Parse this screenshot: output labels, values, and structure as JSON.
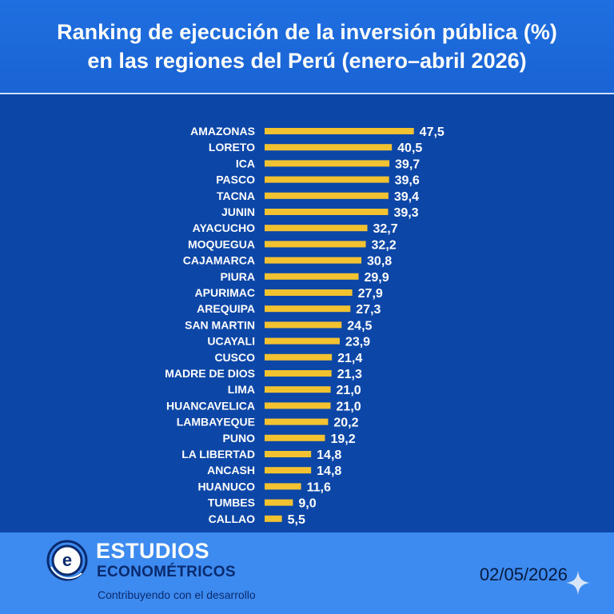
{
  "header": {
    "title_line1": "Ranking de ejecución de la inversión pública (%)",
    "title_line2": "en las regiones del Perú (enero–abril 2026)"
  },
  "chart_data": {
    "type": "bar",
    "orientation": "horizontal",
    "categories": [
      "AMAZONAS",
      "LORETO",
      "ICA",
      "PASCO",
      "TACNA",
      "JUNIN",
      "AYACUCHO",
      "MOQUEGUA",
      "CAJAMARCA",
      "PIURA",
      "APURIMAC",
      "AREQUIPA",
      "SAN MARTIN",
      "UCAYALI",
      "CUSCO",
      "MADRE DE DIOS",
      "LIMA",
      "HUANCAVELICA",
      "LAMBAYEQUE",
      "PUNO",
      "LA LIBERTAD",
      "ANCASH",
      "HUANUCO",
      "TUMBES",
      "CALLAO"
    ],
    "values": [
      47.5,
      40.5,
      39.7,
      39.6,
      39.4,
      39.3,
      32.7,
      32.2,
      30.8,
      29.9,
      27.9,
      27.3,
      24.5,
      23.9,
      21.4,
      21.3,
      21.0,
      21.0,
      20.2,
      19.2,
      14.8,
      14.8,
      11.6,
      9.0,
      5.5
    ],
    "value_labels": [
      "47,5",
      "40,5",
      "39,7",
      "39,6",
      "39,4",
      "39,3",
      "32,7",
      "32,2",
      "30,8",
      "29,9",
      "27,9",
      "27,3",
      "24,5",
      "23,9",
      "21,4",
      "21,3",
      "21,0",
      "21,0",
      "20,2",
      "19,2",
      "14,8",
      "14,8",
      "11,6",
      "9,0",
      "5,5"
    ],
    "xlim": [
      0,
      50
    ],
    "grid": false,
    "bar_color": "#f2c230",
    "label_color": "#ffffff"
  },
  "footer": {
    "brand_line1": "ESTUDIOS",
    "brand_line2": "ECONOMÉTRICOS",
    "tagline": "Contribuyendo con el desarrollo",
    "logo_letter": "e",
    "date": "02/05/2026"
  },
  "colors": {
    "header_bg": "#1a63d4",
    "chart_bg": "#0c47a8",
    "footer_bg": "#3d8bf0"
  }
}
